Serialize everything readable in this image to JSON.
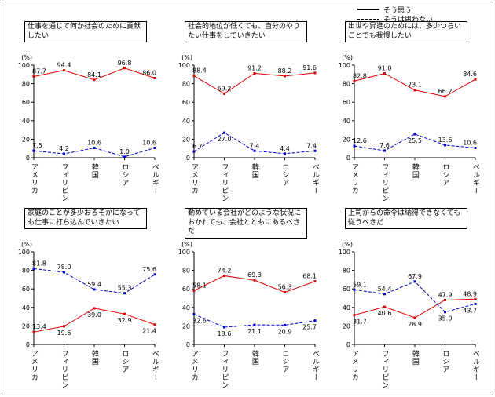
{
  "legend": {
    "solid_label": "そう思う",
    "dashed_label": "そうは思わない"
  },
  "colors": {
    "solid": "#dd0000",
    "dashed": "#0000cc",
    "axis": "#000000",
    "text": "#000000"
  },
  "axis": {
    "unit_label": "(%)",
    "ticks": [
      0,
      20,
      40,
      60,
      80,
      100
    ]
  },
  "categories": [
    "アメリカ",
    "フィリピン",
    "韓国",
    "ロシア",
    "ベルギー"
  ],
  "chart_data": [
    {
      "type": "line",
      "title": "仕事を通じて何か社会のために貢献したい",
      "ylim": [
        0,
        100
      ],
      "categories": [
        "アメリカ",
        "フィリピン",
        "韓国",
        "ロシア",
        "ベルギー"
      ],
      "series": [
        {
          "name": "そう思う",
          "style": "solid",
          "values": [
            87.7,
            94.4,
            84.1,
            96.8,
            86.0
          ]
        },
        {
          "name": "そうは思わない",
          "style": "dashed",
          "values": [
            7.5,
            4.2,
            10.6,
            1.0,
            10.6
          ]
        }
      ]
    },
    {
      "type": "line",
      "title": "社会的地位が低くても、自分のやりたい仕事をしていきたい",
      "ylim": [
        0,
        100
      ],
      "categories": [
        "アメリカ",
        "フィリピン",
        "韓国",
        "ロシア",
        "ベルギー"
      ],
      "series": [
        {
          "name": "そう思う",
          "style": "solid",
          "values": [
            88.4,
            69.2,
            91.2,
            88.2,
            91.6
          ]
        },
        {
          "name": "そうは思わない",
          "style": "dashed",
          "values": [
            6.7,
            27.0,
            7.4,
            4.4,
            7.4
          ]
        }
      ]
    },
    {
      "type": "line",
      "title": "出世や昇進のためには、多少つらいことでも我慢したい",
      "ylim": [
        0,
        100
      ],
      "categories": [
        "アメリカ",
        "フィリピン",
        "韓国",
        "ロシア",
        "ベルギー"
      ],
      "series": [
        {
          "name": "そう思う",
          "style": "solid",
          "values": [
            82.8,
            91.0,
            73.1,
            66.2,
            84.6
          ]
        },
        {
          "name": "そうは思わない",
          "style": "dashed",
          "values": [
            12.6,
            7.6,
            25.5,
            13.6,
            10.6
          ]
        }
      ]
    },
    {
      "type": "line",
      "title": "家庭のことが多少おろそかになっても仕事に打ち込んでいきたい",
      "ylim": [
        0,
        100
      ],
      "categories": [
        "アメリカ",
        "フィリピン",
        "韓国",
        "ロシア",
        "ベルギー"
      ],
      "series": [
        {
          "name": "そう思う",
          "style": "solid",
          "values": [
            13.4,
            19.6,
            39.0,
            32.9,
            21.4
          ]
        },
        {
          "name": "そうは思わない",
          "style": "dashed",
          "values": [
            81.8,
            78.0,
            59.4,
            55.3,
            75.6
          ]
        }
      ]
    },
    {
      "type": "line",
      "title": "勤めている会社がどのような状況におかれても、会社とともにあるべきだ",
      "ylim": [
        0,
        100
      ],
      "categories": [
        "アメリカ",
        "フィリピン",
        "韓国",
        "ロシア",
        "ベルギー"
      ],
      "series": [
        {
          "name": "そう思う",
          "style": "solid",
          "values": [
            58.1,
            74.2,
            69.3,
            56.3,
            68.1
          ]
        },
        {
          "name": "そうは思わない",
          "style": "dashed",
          "values": [
            32.6,
            18.6,
            21.1,
            20.9,
            25.7
          ]
        }
      ]
    },
    {
      "type": "line",
      "title": "上司からの命令は納得できなくても従うべきだ",
      "ylim": [
        0,
        100
      ],
      "categories": [
        "アメリカ",
        "フィリピン",
        "韓国",
        "ロシア",
        "ベルギー"
      ],
      "series": [
        {
          "name": "そう思う",
          "style": "solid",
          "values": [
            31.7,
            40.6,
            28.9,
            47.9,
            48.9
          ]
        },
        {
          "name": "そうは思わない",
          "style": "dashed",
          "values": [
            59.1,
            54.4,
            67.9,
            35.0,
            43.7
          ]
        }
      ]
    }
  ]
}
